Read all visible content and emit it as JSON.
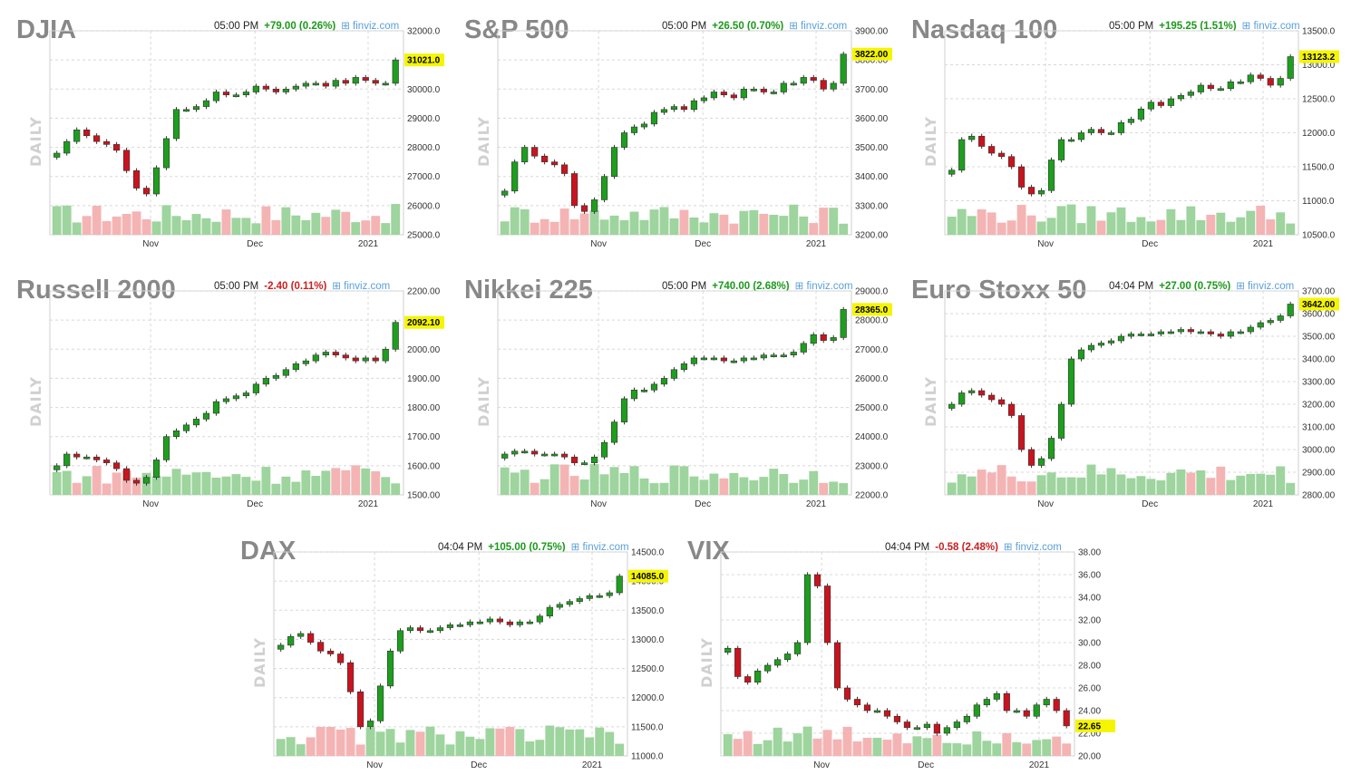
{
  "charts": [
    {
      "title": "DJIA",
      "time": "05:00 PM",
      "change": "+79.00 (0.26%)",
      "direction": "up",
      "logo": "finviz.com",
      "side_label": "DAILY",
      "y_ticks": [
        "32000.0",
        "31000.0",
        "30000.0",
        "29000.0",
        "28000.0",
        "27000.0",
        "26000.0",
        "25000.0"
      ],
      "x_ticks": [
        "Nov",
        "Dec",
        "2021"
      ],
      "last": "31021.0"
    },
    {
      "title": "S&P 500",
      "time": "05:00 PM",
      "change": "+26.50 (0.70%)",
      "direction": "up",
      "logo": "finviz.com",
      "side_label": "DAILY",
      "y_ticks": [
        "3900.00",
        "3800.00",
        "3700.00",
        "3600.00",
        "3500.00",
        "3400.00",
        "3300.00",
        "3200.00"
      ],
      "x_ticks": [
        "Nov",
        "Dec",
        "2021"
      ],
      "last": "3822.00"
    },
    {
      "title": "Nasdaq 100",
      "time": "05:00 PM",
      "change": "+195.25 (1.51%)",
      "direction": "up",
      "logo": "finviz.com",
      "side_label": "DAILY",
      "y_ticks": [
        "13500.0",
        "13000.0",
        "12500.0",
        "12000.0",
        "11500.0",
        "11000.0",
        "10500.0"
      ],
      "x_ticks": [
        "Nov",
        "Dec",
        "2021"
      ],
      "last": "13123.2"
    },
    {
      "title": "Russell 2000",
      "time": "05:00 PM",
      "change": "-2.40 (0.11%)",
      "direction": "down",
      "logo": "finviz.com",
      "side_label": "DAILY",
      "y_ticks": [
        "2200.00",
        "2100.00",
        "2000.00",
        "1900.00",
        "1800.00",
        "1700.00",
        "1600.00",
        "1500.00"
      ],
      "x_ticks": [
        "Nov",
        "Dec",
        "2021"
      ],
      "last": "2092.10"
    },
    {
      "title": "Nikkei 225",
      "time": "05:00 PM",
      "change": "+740.00 (2.68%)",
      "direction": "up",
      "logo": "finviz.com",
      "side_label": "DAILY",
      "y_ticks": [
        "29000.0",
        "28000.0",
        "27000.0",
        "26000.0",
        "25000.0",
        "24000.0",
        "23000.0",
        "22000.0"
      ],
      "x_ticks": [
        "Nov",
        "Dec",
        "2021"
      ],
      "last": "28365.0"
    },
    {
      "title": "Euro Stoxx 50",
      "time": "04:04 PM",
      "change": "+27.00 (0.75%)",
      "direction": "up",
      "logo": "finviz.com",
      "side_label": "DAILY",
      "y_ticks": [
        "3700.00",
        "3600.00",
        "3500.00",
        "3400.00",
        "3300.00",
        "3200.00",
        "3100.00",
        "3000.00",
        "2900.00",
        "2800.00"
      ],
      "x_ticks": [
        "Nov",
        "Dec",
        "2021"
      ],
      "last": "3642.00"
    },
    {
      "title": "DAX",
      "time": "04:04 PM",
      "change": "+105.00 (0.75%)",
      "direction": "up",
      "logo": "finviz.com",
      "side_label": "DAILY",
      "y_ticks": [
        "14500.0",
        "14000.0",
        "13500.0",
        "13000.0",
        "12500.0",
        "12000.0",
        "11500.0",
        "11000.0"
      ],
      "x_ticks": [
        "Nov",
        "Dec",
        "2021"
      ],
      "last": "14085.0"
    },
    {
      "title": "VIX",
      "time": "04:04 PM",
      "change": "-0.58 (2.48%)",
      "direction": "down",
      "logo": "finviz.com",
      "side_label": "DAILY",
      "y_ticks": [
        "38.00",
        "36.00",
        "34.00",
        "32.00",
        "30.00",
        "28.00",
        "26.00",
        "24.00",
        "22.00",
        "20.00"
      ],
      "x_ticks": [
        "Nov",
        "Dec",
        "2021"
      ],
      "last": "22.65"
    }
  ],
  "chart_data": [
    {
      "type": "line",
      "title": "DJIA",
      "ylim": [
        25000,
        32000
      ],
      "x_labels": [
        "Nov",
        "Dec",
        "2021"
      ],
      "series": [
        {
          "values": [
            27800,
            28200,
            28600,
            28400,
            28200,
            28100,
            27900,
            27200,
            26600,
            26400,
            27300,
            28300,
            29300,
            29300,
            29400,
            29600,
            29900,
            29800,
            29800,
            29900,
            30100,
            30000,
            29900,
            30000,
            30100,
            30200,
            30200,
            30100,
            30300,
            30200,
            30400,
            30300,
            30200,
            30200,
            31000
          ]
        }
      ],
      "colors": {
        "up": "#1e9e1e",
        "down": "#c8141e",
        "vol_up": "#9ed49e",
        "vol_down": "#f4b4b4"
      }
    },
    {
      "type": "line",
      "title": "S&P 500",
      "ylim": [
        3200,
        3900
      ],
      "x_labels": [
        "Nov",
        "Dec",
        "2021"
      ],
      "series": [
        {
          "values": [
            3350,
            3450,
            3500,
            3470,
            3450,
            3440,
            3410,
            3300,
            3280,
            3320,
            3400,
            3500,
            3550,
            3570,
            3580,
            3620,
            3630,
            3640,
            3630,
            3660,
            3670,
            3690,
            3680,
            3670,
            3700,
            3700,
            3690,
            3690,
            3720,
            3720,
            3740,
            3730,
            3700,
            3720,
            3820
          ]
        }
      ],
      "colors": {
        "up": "#1e9e1e",
        "down": "#c8141e",
        "vol_up": "#9ed49e",
        "vol_down": "#f4b4b4"
      }
    },
    {
      "type": "line",
      "title": "Nasdaq 100",
      "ylim": [
        10500,
        13500
      ],
      "x_labels": [
        "Nov",
        "Dec",
        "2021"
      ],
      "series": [
        {
          "values": [
            11450,
            11900,
            11950,
            11800,
            11700,
            11650,
            11500,
            11200,
            11100,
            11150,
            11600,
            11900,
            11900,
            12000,
            12050,
            12000,
            12000,
            12150,
            12200,
            12350,
            12450,
            12400,
            12500,
            12550,
            12600,
            12700,
            12650,
            12650,
            12750,
            12750,
            12850,
            12800,
            12700,
            12800,
            13120
          ]
        }
      ],
      "colors": {
        "up": "#1e9e1e",
        "down": "#c8141e",
        "vol_up": "#9ed49e",
        "vol_down": "#f4b4b4"
      }
    },
    {
      "type": "line",
      "title": "Russell 2000",
      "ylim": [
        1500,
        2200
      ],
      "x_labels": [
        "Nov",
        "Dec",
        "2021"
      ],
      "series": [
        {
          "values": [
            1600,
            1640,
            1630,
            1630,
            1620,
            1610,
            1590,
            1550,
            1540,
            1560,
            1620,
            1700,
            1720,
            1740,
            1760,
            1780,
            1820,
            1830,
            1840,
            1850,
            1880,
            1900,
            1910,
            1930,
            1950,
            1960,
            1980,
            1990,
            1980,
            1970,
            1960,
            1970,
            1960,
            2000,
            2092
          ]
        }
      ],
      "colors": {
        "up": "#1e9e1e",
        "down": "#c8141e",
        "vol_up": "#9ed49e",
        "vol_down": "#f4b4b4"
      }
    },
    {
      "type": "line",
      "title": "Nikkei 225",
      "ylim": [
        22000,
        29000
      ],
      "x_labels": [
        "Nov",
        "Dec",
        "2021"
      ],
      "series": [
        {
          "values": [
            23400,
            23500,
            23500,
            23400,
            23400,
            23400,
            23300,
            23100,
            23100,
            23300,
            23800,
            24500,
            25300,
            25600,
            25600,
            25800,
            26000,
            26300,
            26500,
            26700,
            26700,
            26700,
            26600,
            26600,
            26700,
            26700,
            26800,
            26800,
            26800,
            26900,
            27200,
            27500,
            27300,
            27400,
            28365
          ]
        }
      ],
      "colors": {
        "up": "#1e9e1e",
        "down": "#c8141e",
        "vol_up": "#9ed49e",
        "vol_down": "#f4b4b4"
      }
    },
    {
      "type": "line",
      "title": "Euro Stoxx 50",
      "ylim": [
        2800,
        3700
      ],
      "x_labels": [
        "Nov",
        "Dec",
        "2021"
      ],
      "series": [
        {
          "values": [
            3200,
            3250,
            3260,
            3240,
            3220,
            3200,
            3150,
            3000,
            2930,
            2960,
            3050,
            3200,
            3400,
            3440,
            3460,
            3470,
            3480,
            3500,
            3510,
            3510,
            3510,
            3520,
            3520,
            3530,
            3520,
            3520,
            3510,
            3500,
            3520,
            3520,
            3540,
            3560,
            3570,
            3590,
            3642
          ]
        }
      ],
      "colors": {
        "up": "#1e9e1e",
        "down": "#c8141e",
        "vol_up": "#9ed49e",
        "vol_down": "#f4b4b4"
      }
    },
    {
      "type": "line",
      "title": "DAX",
      "ylim": [
        11000,
        14500
      ],
      "x_labels": [
        "Nov",
        "Dec",
        "2021"
      ],
      "series": [
        {
          "values": [
            12900,
            13050,
            13100,
            12950,
            12800,
            12750,
            12600,
            12100,
            11500,
            11600,
            12200,
            12800,
            13150,
            13200,
            13150,
            13150,
            13200,
            13250,
            13250,
            13300,
            13300,
            13350,
            13300,
            13250,
            13300,
            13300,
            13400,
            13550,
            13600,
            13650,
            13700,
            13750,
            13750,
            13800,
            14085
          ]
        }
      ],
      "colors": {
        "up": "#1e9e1e",
        "down": "#c8141e",
        "vol_up": "#9ed49e",
        "vol_down": "#f4b4b4"
      }
    },
    {
      "type": "line",
      "title": "VIX",
      "ylim": [
        20,
        38
      ],
      "x_labels": [
        "Nov",
        "Dec",
        "2021"
      ],
      "series": [
        {
          "values": [
            29.5,
            27,
            26.5,
            27.5,
            28,
            28.5,
            29,
            30,
            36,
            35,
            30,
            26,
            25,
            24.5,
            24,
            24,
            23.5,
            23,
            22.5,
            22.5,
            22.8,
            22,
            22.5,
            23,
            23.5,
            24.5,
            25,
            25.5,
            24,
            24,
            23.5,
            24.5,
            25,
            24,
            22.65
          ]
        }
      ],
      "colors": {
        "up": "#1e9e1e",
        "down": "#c8141e",
        "vol_up": "#9ed49e",
        "vol_down": "#f4b4b4"
      }
    }
  ]
}
